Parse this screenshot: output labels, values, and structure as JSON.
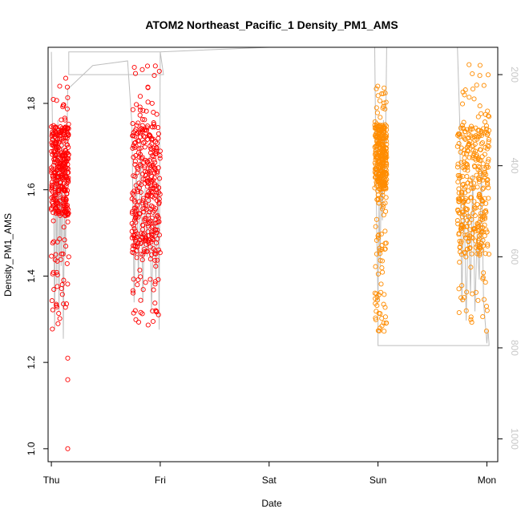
{
  "chart_data": {
    "type": "scatter",
    "title": "ATOM2 Northeast_Pacific_1 Density_PM1_AMS",
    "xlabel": "Date",
    "ylabel": "Density_PM1_AMS",
    "x_ticks": [
      "Thu",
      "Fri",
      "Sat",
      "Sun",
      "Mon"
    ],
    "x_range_days": [
      -0.03,
      4.1
    ],
    "y_ticks": [
      "1.0",
      "1.2",
      "1.4",
      "1.6",
      "1.8"
    ],
    "y_tick_values": [
      1.0,
      1.2,
      1.4,
      1.6,
      1.8
    ],
    "ylim": [
      0.97,
      1.93
    ],
    "y2_ticks": [
      "200",
      "400",
      "600",
      "800",
      "1000"
    ],
    "y2_tick_values": [
      200,
      400,
      600,
      800,
      1000
    ],
    "y2lim": [
      1050,
      140
    ],
    "y2_reversed": true,
    "colors": {
      "series_red": "#ff0000",
      "series_orange": "#ff8c00",
      "altitude_line": "#bebebe",
      "right_axis": "#c8c8c8"
    },
    "series": [
      {
        "color_key": "series_red",
        "clusters": [
          {
            "x_start": 0.0,
            "x_end": 0.16,
            "y_core": [
              1.54,
              1.75
            ],
            "y_spread": [
              1.27,
              1.86
            ],
            "outliers": [
              1.21,
              1.16,
              1.0
            ]
          },
          {
            "x_start": 0.74,
            "x_end": 1.0,
            "y_core": [
              1.45,
              1.75
            ],
            "y_spread": [
              1.27,
              1.89
            ],
            "outliers": []
          }
        ]
      },
      {
        "color_key": "series_orange",
        "clusters": [
          {
            "x_start": 2.97,
            "x_end": 3.08,
            "y_core": [
              1.6,
              1.75
            ],
            "y_spread": [
              1.27,
              1.84
            ],
            "outliers": []
          },
          {
            "x_start": 3.73,
            "x_end": 4.02,
            "y_core": [
              1.45,
              1.75
            ],
            "y_spread": [
              1.27,
              1.89
            ],
            "outliers": []
          }
        ]
      }
    ],
    "altitude_path": [
      [
        0.0,
        150
      ],
      [
        0.01,
        310
      ],
      [
        0.02,
        460
      ],
      [
        0.03,
        760
      ],
      [
        0.04,
        360
      ],
      [
        0.05,
        660
      ],
      [
        0.06,
        300
      ],
      [
        0.07,
        720
      ],
      [
        0.08,
        420
      ],
      [
        0.09,
        620
      ],
      [
        0.1,
        350
      ],
      [
        0.11,
        780
      ],
      [
        0.12,
        500
      ],
      [
        0.13,
        600
      ],
      [
        0.14,
        400
      ],
      [
        0.15,
        230
      ],
      [
        0.16,
        230
      ],
      [
        0.38,
        180
      ],
      [
        0.7,
        170
      ],
      [
        0.74,
        310
      ],
      [
        0.76,
        700
      ],
      [
        0.78,
        400
      ],
      [
        0.8,
        650
      ],
      [
        0.82,
        350
      ],
      [
        0.84,
        700
      ],
      [
        0.86,
        450
      ],
      [
        0.88,
        600
      ],
      [
        0.9,
        380
      ],
      [
        0.92,
        720
      ],
      [
        0.94,
        500
      ],
      [
        0.96,
        650
      ],
      [
        0.98,
        420
      ],
      [
        0.99,
        760
      ],
      [
        1.0,
        150
      ],
      [
        1.03,
        200
      ],
      [
        0.16,
        200
      ],
      [
        0.16,
        150
      ],
      [
        1.0,
        150
      ],
      [
        2.0,
        140
      ],
      [
        2.97,
        140
      ],
      [
        2.98,
        380
      ],
      [
        2.99,
        560
      ],
      [
        3.0,
        700
      ],
      [
        3.01,
        480
      ],
      [
        3.02,
        620
      ],
      [
        3.03,
        400
      ],
      [
        3.04,
        520
      ],
      [
        3.05,
        300
      ],
      [
        3.06,
        450
      ],
      [
        3.07,
        330
      ],
      [
        3.08,
        140
      ],
      [
        3.73,
        140
      ],
      [
        3.75,
        300
      ],
      [
        3.77,
        700
      ],
      [
        3.79,
        450
      ],
      [
        3.81,
        740
      ],
      [
        3.83,
        500
      ],
      [
        3.85,
        680
      ],
      [
        3.87,
        420
      ],
      [
        3.89,
        720
      ],
      [
        3.91,
        550
      ],
      [
        3.93,
        650
      ],
      [
        3.95,
        400
      ],
      [
        3.97,
        700
      ],
      [
        3.99,
        760
      ],
      [
        4.0,
        790
      ],
      [
        4.01,
        760
      ],
      [
        4.02,
        790
      ],
      [
        4.02,
        795
      ],
      [
        3.0,
        795
      ],
      [
        3.0,
        720
      ]
    ]
  }
}
